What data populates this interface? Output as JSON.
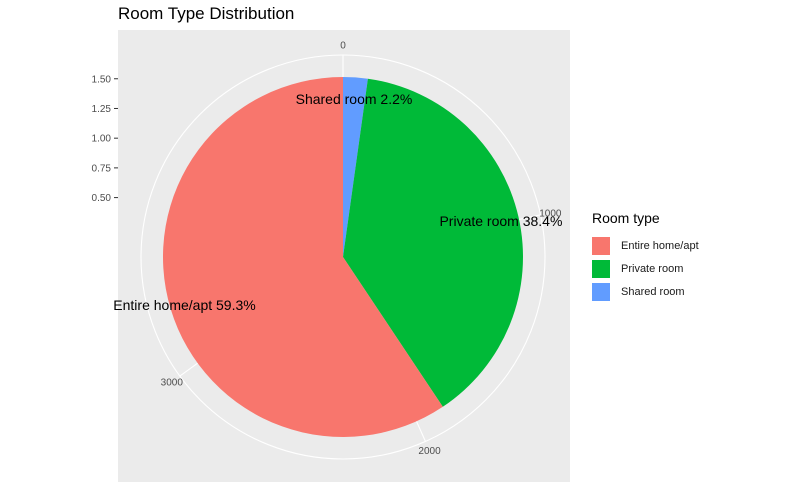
{
  "chart_data": {
    "type": "pie",
    "title": "Room Type Distribution",
    "legend_title": "Room type",
    "legend_position": "right",
    "grid": true,
    "categories": [
      "Entire home/apt",
      "Private room",
      "Shared room"
    ],
    "values": [
      2741,
      1775,
      102
    ],
    "colors": [
      "#F8766D",
      "#00BA38",
      "#619CFF"
    ],
    "slice_labels": [
      "Entire home/apt 59.3%",
      "Private room 38.4%",
      "Shared room 2.2%"
    ],
    "angular_ticks": [
      0,
      1000,
      2000,
      3000
    ],
    "angular_max": 4618,
    "radial_ticks": [
      "0.50",
      "0.75",
      "1.00",
      "1.25",
      "1.50"
    ],
    "radial_range": [
      0,
      1.7
    ]
  }
}
